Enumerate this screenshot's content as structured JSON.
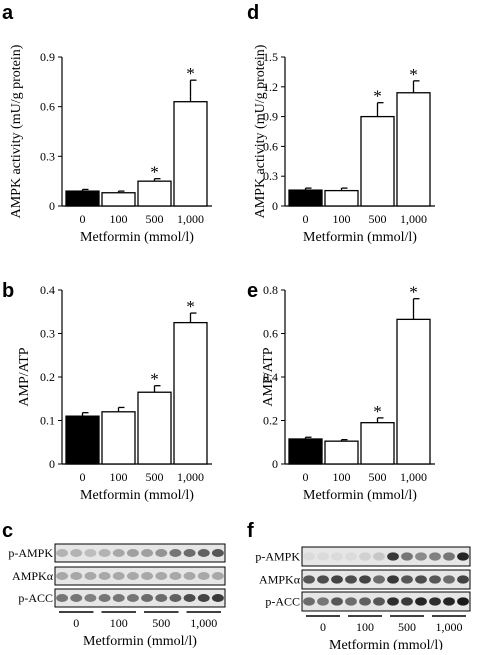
{
  "panel_letters": [
    "a",
    "b",
    "c",
    "d",
    "e",
    "f"
  ],
  "blot_rows": [
    "p-AMPK",
    "AMPKα",
    "p-ACC"
  ],
  "chart_data": [
    {
      "panel": "a",
      "type": "bar",
      "categories": [
        "0",
        "100",
        "500",
        "1,000"
      ],
      "values": [
        0.09,
        0.08,
        0.15,
        0.63
      ],
      "errors": [
        0.01,
        0.01,
        0.015,
        0.13
      ],
      "significant": [
        false,
        false,
        true,
        true
      ],
      "fill": [
        "#000000",
        "#ffffff",
        "#ffffff",
        "#ffffff"
      ],
      "ylim": [
        0,
        0.9
      ],
      "yticks": [
        "0",
        "0.3",
        "0.6",
        "0.9"
      ],
      "xlabel": "Metformin (mmol/l)",
      "ylabel": "AMPK activity (mU/g protein)"
    },
    {
      "panel": "b",
      "type": "bar",
      "categories": [
        "0",
        "100",
        "500",
        "1,000"
      ],
      "values": [
        0.11,
        0.12,
        0.165,
        0.325
      ],
      "errors": [
        0.008,
        0.01,
        0.015,
        0.022
      ],
      "significant": [
        false,
        false,
        true,
        true
      ],
      "fill": [
        "#000000",
        "#ffffff",
        "#ffffff",
        "#ffffff"
      ],
      "ylim": [
        0,
        0.4
      ],
      "yticks": [
        "0",
        "0.1",
        "0.2",
        "0.3",
        "0.4"
      ],
      "xlabel": "Metformin (mmol/l)",
      "ylabel": "AMP/ATP"
    },
    {
      "panel": "d",
      "type": "bar",
      "categories": [
        "0",
        "100",
        "500",
        "1,000"
      ],
      "values": [
        0.16,
        0.155,
        0.9,
        1.14
      ],
      "errors": [
        0.02,
        0.025,
        0.14,
        0.12
      ],
      "significant": [
        false,
        false,
        true,
        true
      ],
      "fill": [
        "#000000",
        "#ffffff",
        "#ffffff",
        "#ffffff"
      ],
      "ylim": [
        0,
        1.5
      ],
      "yticks": [
        "0",
        "0.3",
        "0.6",
        "0.9",
        "1.2",
        "1.5"
      ],
      "xlabel": "Metformin (mmol/l)",
      "ylabel": "AMPK activity (mU/g protein)"
    },
    {
      "panel": "e",
      "type": "bar",
      "categories": [
        "0",
        "100",
        "500",
        "1,000"
      ],
      "values": [
        0.115,
        0.105,
        0.19,
        0.665
      ],
      "errors": [
        0.008,
        0.007,
        0.022,
        0.095
      ],
      "significant": [
        false,
        false,
        true,
        true
      ],
      "fill": [
        "#000000",
        "#ffffff",
        "#ffffff",
        "#ffffff"
      ],
      "ylim": [
        0,
        0.8
      ],
      "yticks": [
        "0",
        "0.2",
        "0.4",
        "0.6",
        "0.8"
      ],
      "xlabel": "Metformin (mmol/l)",
      "ylabel": "AMP/ATP"
    }
  ],
  "blots": [
    {
      "panel": "c",
      "rows": [
        "p-AMPK",
        "AMPKα",
        "p-ACC"
      ],
      "groups": [
        "0",
        "100",
        "500",
        "1,000"
      ],
      "xlabel": "Metformin (mmol/l)",
      "band_intensity": [
        [
          0.25,
          0.25,
          0.2,
          0.25,
          0.3,
          0.35,
          0.35,
          0.4,
          0.55,
          0.6,
          0.65,
          0.7
        ],
        [
          0.3,
          0.3,
          0.3,
          0.3,
          0.3,
          0.3,
          0.3,
          0.3,
          0.3,
          0.3,
          0.3,
          0.3
        ],
        [
          0.55,
          0.55,
          0.5,
          0.55,
          0.55,
          0.55,
          0.6,
          0.6,
          0.65,
          0.75,
          0.8,
          0.85
        ]
      ]
    },
    {
      "panel": "f",
      "rows": [
        "p-AMPK",
        "AMPKα",
        "p-ACC"
      ],
      "groups": [
        "0",
        "100",
        "500",
        "1,000"
      ],
      "xlabel": "Metformin (mmol/l)",
      "band_intensity": [
        [
          0.05,
          0.05,
          0.05,
          0.05,
          0.1,
          0.15,
          0.85,
          0.55,
          0.45,
          0.5,
          0.55,
          0.95
        ],
        [
          0.7,
          0.75,
          0.8,
          0.75,
          0.8,
          0.6,
          0.85,
          0.7,
          0.75,
          0.7,
          0.6,
          0.8
        ],
        [
          0.6,
          0.55,
          0.7,
          0.6,
          0.65,
          0.7,
          0.9,
          0.85,
          0.95,
          0.9,
          0.95,
          1.0
        ]
      ]
    }
  ]
}
